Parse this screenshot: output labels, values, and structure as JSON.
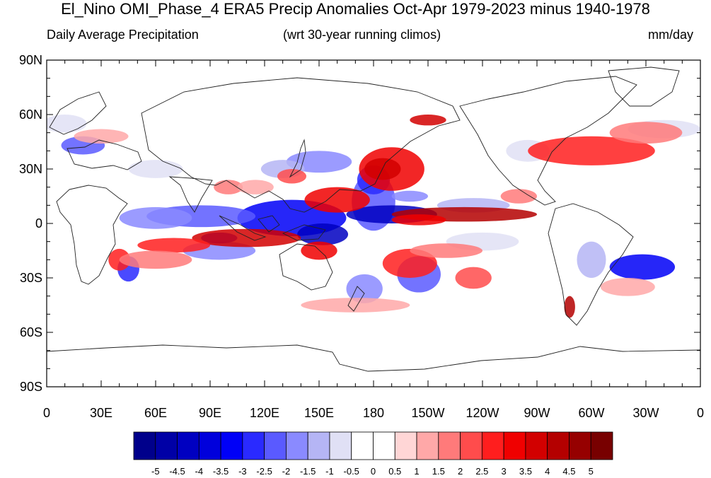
{
  "title": "El_Nino OMI_Phase_4 ERA5 Precip Anomalies Oct-Apr 1979-2023 minus 1940-1978",
  "subtitle_left": "Daily Average Precipitation",
  "subtitle_center": "(wrt 30-year running climos)",
  "subtitle_right": "mm/day",
  "lat_ticks": [
    "90N",
    "60N",
    "30N",
    "0",
    "30S",
    "60S",
    "90S"
  ],
  "lon_ticks": [
    "0",
    "30E",
    "60E",
    "90E",
    "120E",
    "150E",
    "180",
    "150W",
    "120W",
    "90W",
    "60W",
    "30W",
    "0"
  ],
  "colorbar": {
    "labels": [
      "-5",
      "-4.5",
      "-4",
      "-3.5",
      "-3",
      "-2.5",
      "-2",
      "-1.5",
      "-1",
      "-0.5",
      "0",
      "0.5",
      "1",
      "1.5",
      "2",
      "2.5",
      "3",
      "3.5",
      "4",
      "4.5",
      "5"
    ],
    "colors": [
      "#00008b",
      "#0000a6",
      "#0000c1",
      "#0000dc",
      "#0000f7",
      "#2a2aff",
      "#5a5aff",
      "#8a8aff",
      "#b5b5f5",
      "#e0e0f5",
      "#ffffff",
      "#ffffff",
      "#ffd6d6",
      "#ffa8a8",
      "#ff7a7a",
      "#ff4c4c",
      "#ff1e1e",
      "#f00000",
      "#d20000",
      "#b40000",
      "#960000",
      "#780000"
    ]
  },
  "anomalies": [
    {
      "lon": 135,
      "lat": 3,
      "rx": 30,
      "ry": 10,
      "v": -3.5
    },
    {
      "lon": 152,
      "lat": -6,
      "rx": 14,
      "ry": 6,
      "v": -4.5
    },
    {
      "lon": 85,
      "lat": 4,
      "rx": 30,
      "ry": 6,
      "v": -2.5
    },
    {
      "lon": 60,
      "lat": 3,
      "rx": 20,
      "ry": 6,
      "v": -2
    },
    {
      "lon": 180,
      "lat": 12,
      "rx": 12,
      "ry": 16,
      "v": -2.5
    },
    {
      "lon": 180,
      "lat": 24,
      "rx": 9,
      "ry": 8,
      "v": -3
    },
    {
      "lon": 190,
      "lat": 5,
      "rx": 25,
      "ry": 5,
      "v": -4.5
    },
    {
      "lon": 235,
      "lat": 10,
      "rx": 20,
      "ry": 4,
      "v": -1.5
    },
    {
      "lon": 150,
      "lat": 34,
      "rx": 18,
      "ry": 6,
      "v": -2
    },
    {
      "lon": 328,
      "lat": -24,
      "rx": 18,
      "ry": 7,
      "v": -3.5
    },
    {
      "lon": 205,
      "lat": -28,
      "rx": 12,
      "ry": 10,
      "v": -2.5
    },
    {
      "lon": 175,
      "lat": -36,
      "rx": 10,
      "ry": 8,
      "v": -2
    },
    {
      "lon": 265,
      "lat": 40,
      "rx": 12,
      "ry": 6,
      "v": -1
    },
    {
      "lon": 95,
      "lat": -15,
      "rx": 20,
      "ry": 5,
      "v": -2
    },
    {
      "lon": 45,
      "lat": -25,
      "rx": 6,
      "ry": 7,
      "v": -3
    },
    {
      "lon": 20,
      "lat": 43,
      "rx": 12,
      "ry": 5,
      "v": -2.5
    },
    {
      "lon": 10,
      "lat": 55,
      "rx": 12,
      "ry": 5,
      "v": -1
    },
    {
      "lon": 300,
      "lat": -20,
      "rx": 8,
      "ry": 10,
      "v": -1.5
    },
    {
      "lon": 60,
      "lat": 30,
      "rx": 15,
      "ry": 5,
      "v": -1
    },
    {
      "lon": 130,
      "lat": 30,
      "rx": 12,
      "ry": 5,
      "v": -1.5
    },
    {
      "lon": 340,
      "lat": 52,
      "rx": 20,
      "ry": 5,
      "v": -1
    },
    {
      "lon": 240,
      "lat": -10,
      "rx": 20,
      "ry": 5,
      "v": -1
    },
    {
      "lon": 200,
      "lat": 15,
      "rx": 10,
      "ry": 3,
      "v": -2
    },
    {
      "lon": 95,
      "lat": -8,
      "rx": 10,
      "ry": 3,
      "v": -3
    },
    {
      "lon": 190,
      "lat": 30,
      "rx": 18,
      "ry": 12,
      "v": 3
    },
    {
      "lon": 185,
      "lat": 30,
      "rx": 10,
      "ry": 6,
      "v": 3.5
    },
    {
      "lon": 230,
      "lat": 5,
      "rx": 40,
      "ry": 4,
      "v": 4
    },
    {
      "lon": 205,
      "lat": 2,
      "rx": 15,
      "ry": 3,
      "v": 3
    },
    {
      "lon": 110,
      "lat": -8,
      "rx": 30,
      "ry": 5,
      "v": 3.5
    },
    {
      "lon": 70,
      "lat": -12,
      "rx": 20,
      "ry": 4,
      "v": 2.5
    },
    {
      "lon": 160,
      "lat": 13,
      "rx": 18,
      "ry": 7,
      "v": 3
    },
    {
      "lon": 150,
      "lat": -15,
      "rx": 10,
      "ry": 5,
      "v": 3
    },
    {
      "lon": 200,
      "lat": -22,
      "rx": 15,
      "ry": 8,
      "v": 2.5
    },
    {
      "lon": 235,
      "lat": -30,
      "rx": 10,
      "ry": 6,
      "v": 2
    },
    {
      "lon": 300,
      "lat": 40,
      "rx": 35,
      "ry": 8,
      "v": 2.5
    },
    {
      "lon": 330,
      "lat": 50,
      "rx": 20,
      "ry": 6,
      "v": 1.5
    },
    {
      "lon": 210,
      "lat": 57,
      "rx": 10,
      "ry": 3,
      "v": 3.5
    },
    {
      "lon": 288,
      "lat": -46,
      "rx": 3,
      "ry": 6,
      "v": 4
    },
    {
      "lon": 40,
      "lat": -20,
      "rx": 6,
      "ry": 6,
      "v": 2.5
    },
    {
      "lon": 135,
      "lat": 26,
      "rx": 8,
      "ry": 4,
      "v": 2
    },
    {
      "lon": 100,
      "lat": 20,
      "rx": 8,
      "ry": 4,
      "v": 1.5
    },
    {
      "lon": 60,
      "lat": -20,
      "rx": 20,
      "ry": 5,
      "v": 1.5
    },
    {
      "lon": 220,
      "lat": -15,
      "rx": 20,
      "ry": 4,
      "v": 1.5
    },
    {
      "lon": 30,
      "lat": 48,
      "rx": 15,
      "ry": 4,
      "v": 1
    },
    {
      "lon": 170,
      "lat": -45,
      "rx": 30,
      "ry": 4,
      "v": 1
    },
    {
      "lon": 320,
      "lat": -35,
      "rx": 15,
      "ry": 5,
      "v": 1
    },
    {
      "lon": 260,
      "lat": 15,
      "rx": 10,
      "ry": 4,
      "v": 1.5
    },
    {
      "lon": 115,
      "lat": 20,
      "rx": 10,
      "ry": 4,
      "v": 1
    }
  ]
}
